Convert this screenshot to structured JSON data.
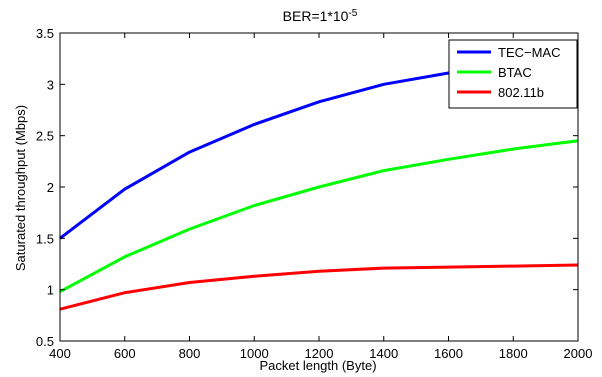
{
  "chart_data": {
    "type": "line",
    "title": "BER=1*10",
    "title_superscript": "-5",
    "xlabel": "Packet length (Byte)",
    "ylabel": "Saturated throughput (Mbps)",
    "xlim": [
      400,
      2000
    ],
    "ylim": [
      0.5,
      3.5
    ],
    "xticks": [
      400,
      600,
      800,
      1000,
      1200,
      1400,
      1600,
      1800,
      2000
    ],
    "yticks": [
      0.5,
      1,
      1.5,
      2,
      2.5,
      3,
      3.5
    ],
    "ytick_labels": [
      "0.5",
      "1",
      "1.5",
      "2",
      "2.5",
      "3",
      "3.5"
    ],
    "grid": false,
    "legend_position": "top-right",
    "series": [
      {
        "name": "TEC−MAC",
        "color": "#0000ff",
        "x": [
          400,
          600,
          800,
          1000,
          1200,
          1400,
          1600,
          1800,
          2000
        ],
        "y": [
          1.5,
          1.98,
          2.34,
          2.61,
          2.83,
          3.0,
          3.11,
          3.22,
          3.3
        ]
      },
      {
        "name": "BTAC",
        "color": "#00ff00",
        "x": [
          400,
          600,
          800,
          1000,
          1200,
          1400,
          1600,
          1800,
          2000
        ],
        "y": [
          0.98,
          1.32,
          1.59,
          1.82,
          2.0,
          2.16,
          2.27,
          2.37,
          2.45
        ]
      },
      {
        "name": "802.11b",
        "color": "#ff0000",
        "x": [
          400,
          600,
          800,
          1000,
          1200,
          1400,
          1600,
          1800,
          2000
        ],
        "y": [
          0.81,
          0.97,
          1.07,
          1.13,
          1.18,
          1.21,
          1.22,
          1.23,
          1.24
        ]
      }
    ]
  }
}
